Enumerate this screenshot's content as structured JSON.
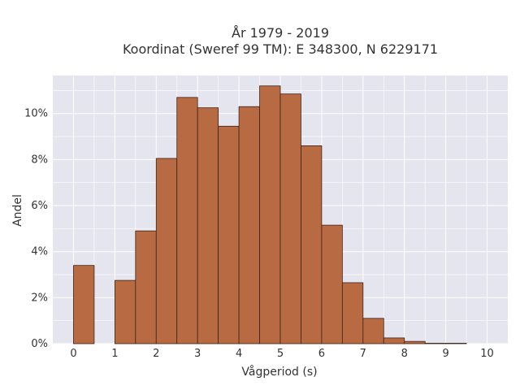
{
  "chart_data": {
    "type": "bar",
    "title_line1": "År 1979 - 2019",
    "title_line2": "Koordinat (Sweref 99 TM): E 348300, N 6229171",
    "xlabel": "Vågperiod (s)",
    "ylabel": "Andel",
    "bin_width": 0.5,
    "bins": [
      {
        "x": 0.0,
        "value": 3.4
      },
      {
        "x": 0.5,
        "value": 0.0
      },
      {
        "x": 1.0,
        "value": 2.75
      },
      {
        "x": 1.5,
        "value": 4.9
      },
      {
        "x": 2.0,
        "value": 8.05
      },
      {
        "x": 2.5,
        "value": 10.7
      },
      {
        "x": 3.0,
        "value": 10.25
      },
      {
        "x": 3.5,
        "value": 9.45
      },
      {
        "x": 4.0,
        "value": 10.3
      },
      {
        "x": 4.5,
        "value": 11.2
      },
      {
        "x": 5.0,
        "value": 10.85
      },
      {
        "x": 5.5,
        "value": 8.6
      },
      {
        "x": 6.0,
        "value": 5.15
      },
      {
        "x": 6.5,
        "value": 2.65
      },
      {
        "x": 7.0,
        "value": 1.1
      },
      {
        "x": 7.5,
        "value": 0.25
      },
      {
        "x": 8.0,
        "value": 0.1
      },
      {
        "x": 8.5,
        "value": 0.02
      },
      {
        "x": 9.0,
        "value": 0.02
      }
    ],
    "xlim": [
      -0.5,
      10.5
    ],
    "ylim": [
      0,
      11.65
    ],
    "x_ticks": [
      "0",
      "1",
      "2",
      "3",
      "4",
      "5",
      "6",
      "7",
      "8",
      "9",
      "10"
    ],
    "y_ticks": [
      "0%",
      "2%",
      "4%",
      "6%",
      "8%",
      "10%"
    ],
    "grid": true,
    "colors": {
      "bar_fill": "#b86b42",
      "bar_stroke": "#3d2416",
      "plot_bg": "#e5e5ef",
      "grid": "#ffffff"
    }
  }
}
